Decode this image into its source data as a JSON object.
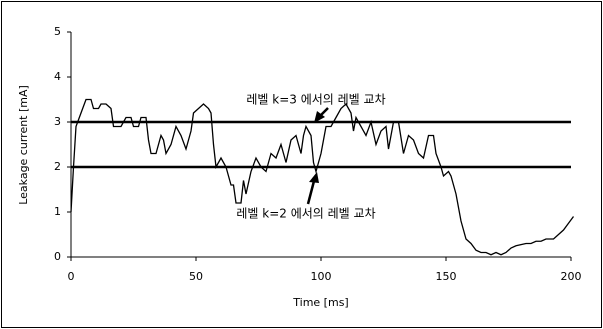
{
  "chart_data": {
    "type": "line",
    "x_label": "Time [ms]",
    "y_label": "Leakage current [mA]",
    "xlim": [
      0,
      200
    ],
    "ylim": [
      0,
      5
    ],
    "xticks": [
      0,
      50,
      100,
      150,
      200
    ],
    "yticks": [
      0,
      1,
      2,
      3,
      4,
      5
    ],
    "color": "#000000",
    "reference_lines": [
      3,
      2
    ],
    "annotations": [
      "레벨 k=3 에서의 레벨 교차",
      "레벨 k=2 에서의 레벨 교차"
    ],
    "x": [
      0,
      1,
      2,
      4,
      6,
      8,
      9,
      11,
      12,
      14,
      16,
      17,
      20,
      22,
      24,
      25,
      27,
      28,
      30,
      31,
      32,
      34,
      36,
      37,
      38,
      40,
      42,
      44,
      46,
      48,
      49,
      51,
      53,
      55,
      56,
      57,
      58,
      60,
      62,
      64,
      65,
      66,
      68,
      69,
      70,
      72,
      74,
      76,
      78,
      80,
      82,
      84,
      86,
      88,
      90,
      92,
      93,
      94,
      96,
      97,
      98,
      100,
      102,
      104,
      106,
      108,
      110,
      112,
      113,
      114,
      116,
      118,
      120,
      122,
      124,
      126,
      127,
      129,
      131,
      133,
      135,
      137,
      139,
      141,
      143,
      145,
      146,
      148,
      149,
      151,
      152,
      154,
      156,
      158,
      160,
      162,
      164,
      166,
      168,
      170,
      172,
      174,
      176,
      178,
      182,
      184,
      186,
      188,
      190,
      193,
      195,
      197,
      199,
      201
    ],
    "values": [
      1.0,
      2.0,
      2.9,
      3.2,
      3.5,
      3.5,
      3.3,
      3.3,
      3.4,
      3.4,
      3.3,
      2.9,
      2.9,
      3.1,
      3.1,
      2.9,
      2.9,
      3.1,
      3.1,
      2.6,
      2.3,
      2.3,
      2.7,
      2.6,
      2.3,
      2.5,
      2.9,
      2.7,
      2.4,
      2.8,
      3.2,
      3.3,
      3.4,
      3.3,
      3.2,
      2.5,
      2.0,
      2.2,
      2.0,
      1.6,
      1.6,
      1.2,
      1.2,
      1.7,
      1.4,
      1.9,
      2.2,
      2.0,
      1.9,
      2.3,
      2.2,
      2.5,
      2.1,
      2.6,
      2.7,
      2.3,
      2.7,
      2.9,
      2.7,
      2.1,
      1.9,
      2.3,
      2.9,
      2.9,
      3.1,
      3.3,
      3.4,
      3.2,
      2.8,
      3.1,
      2.9,
      2.7,
      3.0,
      2.5,
      2.8,
      2.9,
      2.4,
      3.0,
      3.0,
      2.3,
      2.7,
      2.6,
      2.3,
      2.2,
      2.7,
      2.7,
      2.3,
      2.0,
      1.8,
      1.9,
      1.8,
      1.4,
      0.8,
      0.4,
      0.3,
      0.15,
      0.1,
      0.1,
      0.05,
      0.1,
      0.05,
      0.1,
      0.2,
      0.25,
      0.3,
      0.3,
      0.35,
      0.35,
      0.4,
      0.4,
      0.5,
      0.6,
      0.75,
      0.9
    ]
  }
}
